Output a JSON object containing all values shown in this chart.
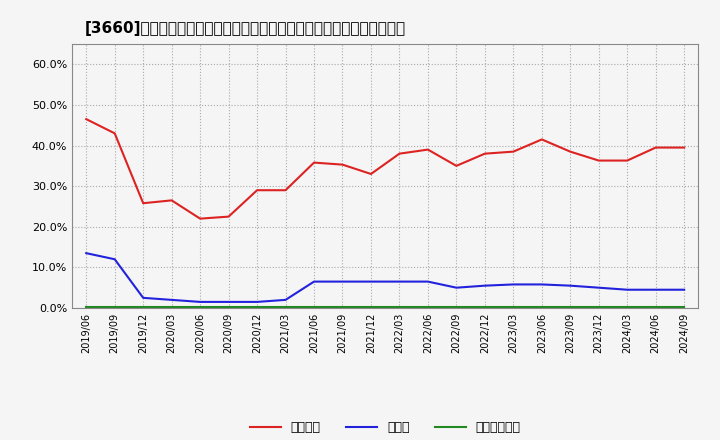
{
  "title": "[3660]　自己資本、のれん、繰延税金資産の総資産に対する比率の推移",
  "x_labels": [
    "2019/06",
    "2019/09",
    "2019/12",
    "2020/03",
    "2020/06",
    "2020/09",
    "2020/12",
    "2021/03",
    "2021/06",
    "2021/09",
    "2021/12",
    "2022/03",
    "2022/06",
    "2022/09",
    "2022/12",
    "2023/03",
    "2023/06",
    "2023/09",
    "2023/12",
    "2024/03",
    "2024/06",
    "2024/09"
  ],
  "jikoshihon": [
    46.5,
    43.0,
    25.8,
    26.5,
    22.0,
    22.5,
    29.0,
    29.0,
    35.8,
    35.3,
    33.0,
    38.0,
    39.0,
    35.0,
    38.0,
    38.5,
    41.5,
    38.5,
    36.3,
    36.3,
    39.5,
    39.5
  ],
  "noren": [
    13.5,
    12.0,
    2.5,
    2.0,
    1.5,
    1.5,
    1.5,
    2.0,
    6.5,
    6.5,
    6.5,
    6.5,
    6.5,
    5.0,
    5.5,
    5.8,
    5.8,
    5.5,
    5.0,
    4.5,
    4.5,
    4.5
  ],
  "kurinobe": [
    0.3,
    0.3,
    0.3,
    0.3,
    0.3,
    0.3,
    0.3,
    0.3,
    0.3,
    0.3,
    0.3,
    0.3,
    0.3,
    0.3,
    0.3,
    0.3,
    0.3,
    0.3,
    0.3,
    0.3,
    0.3,
    0.3
  ],
  "jikoshihon_color": "#dd2222",
  "noren_color": "#2222dd",
  "kurinobe_color": "#228822",
  "bg_color": "#f5f5f5",
  "plot_bg_color": "#f5f5f5",
  "grid_color": "#aaaaaa",
  "ylim": [
    0,
    65
  ],
  "yticks": [
    0.0,
    10.0,
    20.0,
    30.0,
    40.0,
    50.0,
    60.0
  ],
  "title_fontsize": 11,
  "legend_labels": [
    "自己資本",
    "のれん",
    "繰延税金資産"
  ]
}
